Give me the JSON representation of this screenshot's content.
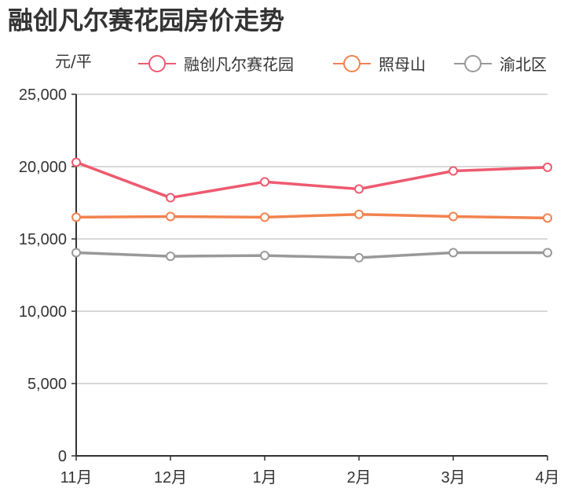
{
  "title": "融创凡尔赛花园房价走势",
  "chart_data": {
    "type": "line",
    "title": "融创凡尔赛花园房价走势",
    "xlabel": "",
    "ylabel": "元/平",
    "categories": [
      "11月",
      "12月",
      "1月",
      "2月",
      "3月",
      "4月"
    ],
    "series": [
      {
        "name": "融创凡尔赛花园",
        "color": "#ee5a6f",
        "values": [
          20300,
          17850,
          18950,
          18450,
          19700,
          19950
        ]
      },
      {
        "name": "照母山",
        "color": "#f2824e",
        "values": [
          16500,
          16550,
          16500,
          16700,
          16550,
          16450
        ]
      },
      {
        "name": "渝北区",
        "color": "#999999",
        "values": [
          14050,
          13800,
          13850,
          13700,
          14050,
          14050
        ]
      }
    ],
    "ylim": [
      0,
      25000
    ],
    "yticks": [
      0,
      5000,
      10000,
      15000,
      20000,
      25000
    ],
    "ytick_labels": [
      "0",
      "5,000",
      "10,000",
      "15,000",
      "20,000",
      "25,000"
    ],
    "grid": true,
    "legend_position": "top"
  }
}
